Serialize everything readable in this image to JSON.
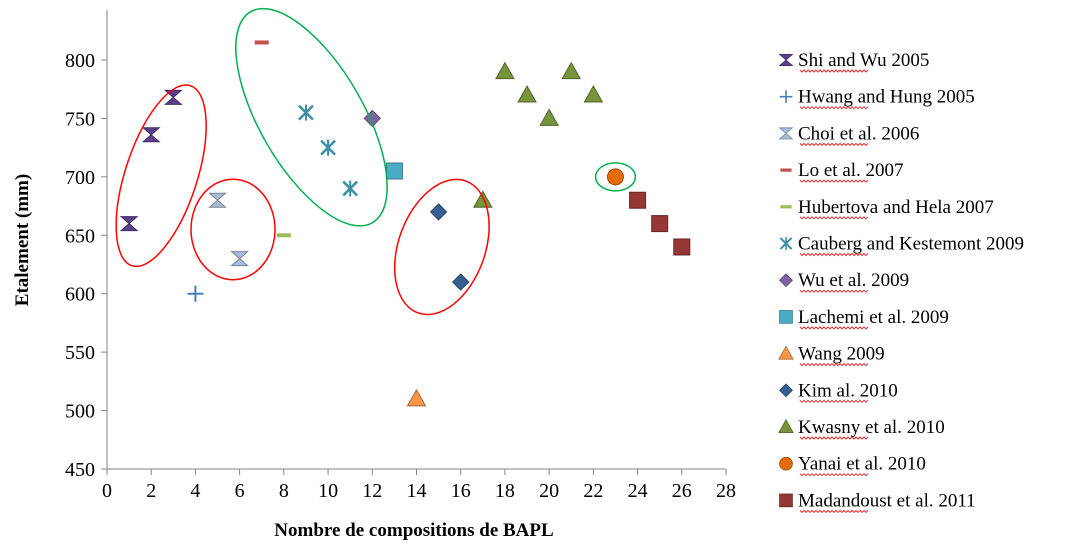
{
  "chart_data": {
    "type": "scatter",
    "xlabel": "Nombre de compositions de BAPL",
    "ylabel": "Etalement (mm)",
    "xlim": [
      0,
      28
    ],
    "ylim": [
      450,
      800
    ],
    "xticks": [
      0,
      2,
      4,
      6,
      8,
      10,
      12,
      14,
      16,
      18,
      20,
      22,
      24,
      26,
      28
    ],
    "yticks": [
      450,
      500,
      550,
      600,
      650,
      700,
      750,
      800
    ],
    "grid": false,
    "legend_position": "right",
    "series": [
      {
        "name": "Shi and Wu 2005",
        "marker": "hourglass",
        "color": "#5B3F8C",
        "points": [
          [
            1,
            660
          ],
          [
            2,
            736
          ],
          [
            3,
            768
          ]
        ]
      },
      {
        "name": "Hwang and Hung 2005",
        "marker": "plus",
        "color": "#4A7EBB",
        "points": [
          [
            4,
            600
          ]
        ]
      },
      {
        "name": "Choi et al. 2006",
        "marker": "hourglass",
        "color": "#A9BDD9",
        "points": [
          [
            5,
            680
          ],
          [
            6,
            630
          ]
        ]
      },
      {
        "name": "Lo et al. 2007",
        "marker": "dash",
        "color": "#C0504D",
        "points": [
          [
            7,
            815
          ]
        ]
      },
      {
        "name": "Hubertova and Hela 2007",
        "marker": "dash",
        "color": "#9BBB59",
        "points": [
          [
            8,
            650
          ]
        ]
      },
      {
        "name": "Cauberg and Kestemont  2009",
        "marker": "star",
        "color": "#3B8FA6",
        "points": [
          [
            9,
            755
          ],
          [
            10,
            725
          ],
          [
            11,
            690
          ]
        ]
      },
      {
        "name": "Wu et al. 2009",
        "marker": "diamond",
        "color": "#8064A2",
        "points": [
          [
            12,
            750
          ]
        ]
      },
      {
        "name": "Lachemi et al. 2009",
        "marker": "square",
        "color": "#4BACC6",
        "points": [
          [
            13,
            705
          ]
        ]
      },
      {
        "name": " Wang 2009",
        "marker": "triangle",
        "color": "#F79646",
        "points": [
          [
            14,
            510
          ]
        ]
      },
      {
        "name": "Kim al. 2010",
        "marker": "diamond",
        "color": "#366092",
        "points": [
          [
            15,
            670
          ],
          [
            16,
            610
          ]
        ]
      },
      {
        "name": "Kwasny et al. 2010",
        "marker": "triangle",
        "color": "#77933C",
        "points": [
          [
            17,
            680
          ],
          [
            18,
            790
          ],
          [
            19,
            770
          ],
          [
            20,
            750
          ],
          [
            21,
            790
          ],
          [
            22,
            770
          ]
        ]
      },
      {
        "name": "Yanai et al. 2010",
        "marker": "circle",
        "color": "#E36C09",
        "points": [
          [
            23,
            700
          ]
        ]
      },
      {
        "name": "Madandoust et al. 2011",
        "marker": "square",
        "color": "#953735",
        "points": [
          [
            24,
            680
          ],
          [
            25,
            660
          ],
          [
            26,
            640
          ]
        ]
      }
    ],
    "annotations": [
      {
        "shape": "ellipse",
        "color": "#FF0000",
        "x_range": [
          0.5,
          4.4
        ],
        "y_range": [
          620,
          782
        ]
      },
      {
        "shape": "ellipse",
        "color": "#FF0000",
        "x_range": [
          3.8,
          7.6
        ],
        "y_range": [
          612,
          698
        ]
      },
      {
        "shape": "ellipse",
        "color": "#00B050",
        "x_range": [
          6.2,
          12.3
        ],
        "y_range": [
          652,
          850
        ]
      },
      {
        "shape": "ellipse",
        "color": "#FF0000",
        "x_range": [
          12.8,
          17.5
        ],
        "y_range": [
          580,
          700
        ]
      },
      {
        "shape": "ellipse",
        "color": "#00B050",
        "x_range": [
          22.1,
          23.9
        ],
        "y_range": [
          688,
          712
        ]
      }
    ]
  }
}
